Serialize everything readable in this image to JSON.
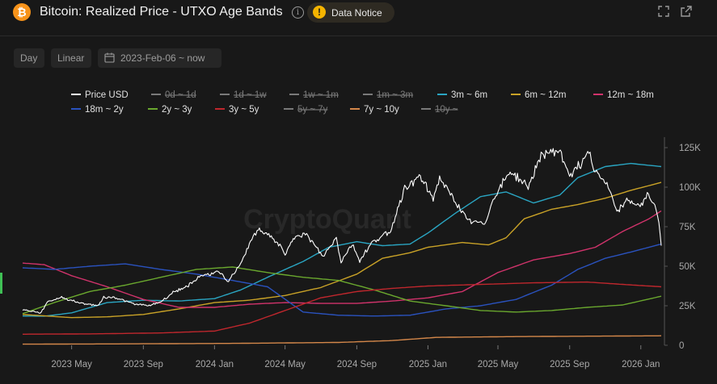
{
  "header": {
    "logo_glyph": "₿",
    "title": "Bitcoin: Realized Price - UTXO Age Bands",
    "info_glyph": "i",
    "notice_glyph": "!",
    "notice_label": "Data Notice",
    "icons": [
      "bitcoin-logo",
      "info-icon",
      "warning-icon",
      "fullscreen-icon",
      "external-link-icon"
    ]
  },
  "controls": {
    "interval": "Day",
    "scale": "Linear",
    "date_range": "2023-Feb-06 ~ now",
    "calendar_icon": "calendar-icon"
  },
  "watermark": "CryptoQuant",
  "chart_data": {
    "type": "line",
    "title": "Bitcoin: Realized Price - UTXO Age Bands",
    "x_range": [
      "2023-02-06",
      "2026-02-05"
    ],
    "x_ticks": [
      {
        "label": "2023 May",
        "date": "2023-05-01"
      },
      {
        "label": "2023 Sep",
        "date": "2023-09-01"
      },
      {
        "label": "2024 Jan",
        "date": "2024-01-01"
      },
      {
        "label": "2024 May",
        "date": "2024-05-01"
      },
      {
        "label": "2024 Sep",
        "date": "2024-09-01"
      },
      {
        "label": "2025 Jan",
        "date": "2025-01-01"
      },
      {
        "label": "2025 May",
        "date": "2025-05-01"
      },
      {
        "label": "2025 Sep",
        "date": "2025-09-01"
      },
      {
        "label": "2026 Jan",
        "date": "2026-01-01"
      }
    ],
    "y_axis": {
      "position": "right",
      "min": 0,
      "max": 125000,
      "ticks": [
        {
          "v": 0,
          "label": "0"
        },
        {
          "v": 25000,
          "label": "25K"
        },
        {
          "v": 50000,
          "label": "50K"
        },
        {
          "v": 75000,
          "label": "75K"
        },
        {
          "v": 100000,
          "label": "100K"
        },
        {
          "v": 125000,
          "label": "125K"
        }
      ]
    },
    "legend": [
      {
        "name": "Price USD",
        "color": "#ffffff",
        "visible": true
      },
      {
        "name": "0d ~ 1d",
        "color": "#888888",
        "visible": false
      },
      {
        "name": "1d ~ 1w",
        "color": "#888888",
        "visible": false
      },
      {
        "name": "1w ~ 1m",
        "color": "#888888",
        "visible": false
      },
      {
        "name": "1m ~ 3m",
        "color": "#888888",
        "visible": false
      },
      {
        "name": "3m ~ 6m",
        "color": "#2aa5c2",
        "visible": true
      },
      {
        "name": "6m ~ 12m",
        "color": "#c9a227",
        "visible": true
      },
      {
        "name": "12m ~ 18m",
        "color": "#d1336b",
        "visible": true
      },
      {
        "name": "18m ~ 2y",
        "color": "#2a52be",
        "visible": true
      },
      {
        "name": "2y ~ 3y",
        "color": "#6aa82e",
        "visible": true
      },
      {
        "name": "3y ~ 5y",
        "color": "#c0272d",
        "visible": true
      },
      {
        "name": "5y ~ 7y",
        "color": "#888888",
        "visible": false
      },
      {
        "name": "7y ~ 10y",
        "color": "#d4874a",
        "visible": true
      },
      {
        "name": "10y ~",
        "color": "#888888",
        "visible": false
      }
    ],
    "series": [
      {
        "name": "Price USD",
        "color": "#ffffff",
        "width": 1.1,
        "noise": 0.02,
        "points": [
          [
            "2023-02-06",
            22500
          ],
          [
            "2023-03-10",
            20500
          ],
          [
            "2023-03-20",
            27500
          ],
          [
            "2023-04-14",
            30300
          ],
          [
            "2023-05-15",
            26800
          ],
          [
            "2023-06-15",
            25100
          ],
          [
            "2023-06-25",
            30500
          ],
          [
            "2023-07-15",
            30200
          ],
          [
            "2023-08-17",
            26000
          ],
          [
            "2023-09-11",
            25100
          ],
          [
            "2023-10-01",
            27500
          ],
          [
            "2023-10-24",
            34000
          ],
          [
            "2023-11-15",
            37000
          ],
          [
            "2023-12-08",
            44000
          ],
          [
            "2024-01-11",
            46500
          ],
          [
            "2024-01-23",
            39500
          ],
          [
            "2024-02-15",
            52000
          ],
          [
            "2024-03-05",
            67000
          ],
          [
            "2024-03-14",
            73000
          ],
          [
            "2024-04-01",
            70000
          ],
          [
            "2024-04-20",
            64000
          ],
          [
            "2024-05-01",
            58000
          ],
          [
            "2024-05-21",
            70000
          ],
          [
            "2024-06-07",
            70000
          ],
          [
            "2024-07-05",
            56000
          ],
          [
            "2024-07-28",
            68000
          ],
          [
            "2024-08-05",
            53000
          ],
          [
            "2024-08-24",
            64000
          ],
          [
            "2024-09-06",
            53500
          ],
          [
            "2024-09-28",
            65500
          ],
          [
            "2024-10-29",
            72000
          ],
          [
            "2024-11-12",
            89000
          ],
          [
            "2024-11-22",
            99000
          ],
          [
            "2024-12-17",
            107000
          ],
          [
            "2025-01-10",
            93000
          ],
          [
            "2025-01-21",
            106000
          ],
          [
            "2025-02-25",
            86000
          ],
          [
            "2025-03-10",
            78500
          ],
          [
            "2025-04-08",
            77000
          ],
          [
            "2025-04-25",
            94000
          ],
          [
            "2025-05-22",
            110000
          ],
          [
            "2025-06-22",
            100000
          ],
          [
            "2025-07-14",
            121000
          ],
          [
            "2025-08-14",
            123000
          ],
          [
            "2025-09-01",
            108000
          ],
          [
            "2025-09-20",
            115000
          ],
          [
            "2025-10-06",
            125000
          ],
          [
            "2025-10-11",
            112000
          ],
          [
            "2025-11-04",
            102000
          ],
          [
            "2025-11-21",
            84000
          ],
          [
            "2025-12-10",
            92000
          ],
          [
            "2025-12-31",
            87500
          ],
          [
            "2026-01-14",
            96000
          ],
          [
            "2026-01-25",
            88000
          ],
          [
            "2026-02-01",
            78000
          ],
          [
            "2026-02-05",
            63000
          ]
        ]
      },
      {
        "name": "3m ~ 6m",
        "color": "#2aa5c2",
        "width": 1.4,
        "noise": 0,
        "points": [
          [
            "2023-02-06",
            18500
          ],
          [
            "2023-03-15",
            18400
          ],
          [
            "2023-05-01",
            20500
          ],
          [
            "2023-07-01",
            27000
          ],
          [
            "2023-09-01",
            28500
          ],
          [
            "2023-11-01",
            28000
          ],
          [
            "2024-01-01",
            29500
          ],
          [
            "2024-02-15",
            35000
          ],
          [
            "2024-04-01",
            43000
          ],
          [
            "2024-06-01",
            53000
          ],
          [
            "2024-07-15",
            62000
          ],
          [
            "2024-09-01",
            65500
          ],
          [
            "2024-10-15",
            63000
          ],
          [
            "2024-12-01",
            64000
          ],
          [
            "2025-01-01",
            71000
          ],
          [
            "2025-02-15",
            83000
          ],
          [
            "2025-04-01",
            94000
          ],
          [
            "2025-05-15",
            97000
          ],
          [
            "2025-07-01",
            90000
          ],
          [
            "2025-08-15",
            95000
          ],
          [
            "2025-09-15",
            106000
          ],
          [
            "2025-11-01",
            113000
          ],
          [
            "2025-12-15",
            115000
          ],
          [
            "2026-02-05",
            113000
          ]
        ]
      },
      {
        "name": "6m ~ 12m",
        "color": "#c9a227",
        "width": 1.4,
        "noise": 0,
        "points": [
          [
            "2023-02-06",
            19500
          ],
          [
            "2023-05-01",
            17500
          ],
          [
            "2023-07-01",
            18000
          ],
          [
            "2023-09-01",
            19500
          ],
          [
            "2023-11-01",
            23000
          ],
          [
            "2024-01-01",
            27000
          ],
          [
            "2024-03-01",
            28500
          ],
          [
            "2024-05-01",
            31500
          ],
          [
            "2024-07-01",
            36500
          ],
          [
            "2024-09-01",
            45000
          ],
          [
            "2024-10-15",
            55000
          ],
          [
            "2024-12-01",
            58500
          ],
          [
            "2025-01-01",
            62000
          ],
          [
            "2025-03-01",
            65000
          ],
          [
            "2025-04-15",
            63500
          ],
          [
            "2025-05-15",
            68000
          ],
          [
            "2025-06-15",
            80000
          ],
          [
            "2025-08-01",
            86000
          ],
          [
            "2025-09-15",
            89000
          ],
          [
            "2025-11-01",
            93000
          ],
          [
            "2025-12-15",
            98000
          ],
          [
            "2026-02-05",
            103000
          ]
        ]
      },
      {
        "name": "12m ~ 18m",
        "color": "#d1336b",
        "width": 1.4,
        "noise": 0,
        "points": [
          [
            "2023-02-06",
            52000
          ],
          [
            "2023-03-15",
            51000
          ],
          [
            "2023-05-01",
            44000
          ],
          [
            "2023-07-01",
            37000
          ],
          [
            "2023-09-01",
            29000
          ],
          [
            "2023-11-01",
            24000
          ],
          [
            "2024-01-01",
            24000
          ],
          [
            "2024-03-01",
            26000
          ],
          [
            "2024-05-01",
            27000
          ],
          [
            "2024-07-01",
            26500
          ],
          [
            "2024-09-01",
            26500
          ],
          [
            "2024-11-01",
            28000
          ],
          [
            "2025-01-01",
            30000
          ],
          [
            "2025-03-01",
            34000
          ],
          [
            "2025-05-01",
            46000
          ],
          [
            "2025-07-01",
            54000
          ],
          [
            "2025-09-01",
            58000
          ],
          [
            "2025-10-15",
            62000
          ],
          [
            "2025-12-01",
            72000
          ],
          [
            "2026-01-15",
            80000
          ],
          [
            "2026-02-05",
            85000
          ]
        ]
      },
      {
        "name": "18m ~ 2y",
        "color": "#2a52be",
        "width": 1.4,
        "noise": 0,
        "points": [
          [
            "2023-02-06",
            49000
          ],
          [
            "2023-04-01",
            48000
          ],
          [
            "2023-06-01",
            50000
          ],
          [
            "2023-08-01",
            51500
          ],
          [
            "2023-10-01",
            48000
          ],
          [
            "2023-12-01",
            45000
          ],
          [
            "2024-02-01",
            41000
          ],
          [
            "2024-04-01",
            37000
          ],
          [
            "2024-06-01",
            21000
          ],
          [
            "2024-08-01",
            19000
          ],
          [
            "2024-10-01",
            18500
          ],
          [
            "2024-12-01",
            19000
          ],
          [
            "2025-02-01",
            23000
          ],
          [
            "2025-04-01",
            25000
          ],
          [
            "2025-06-01",
            29000
          ],
          [
            "2025-08-01",
            38000
          ],
          [
            "2025-09-15",
            48000
          ],
          [
            "2025-11-01",
            55000
          ],
          [
            "2025-12-15",
            59000
          ],
          [
            "2026-02-05",
            64000
          ]
        ]
      },
      {
        "name": "2y ~ 3y",
        "color": "#6aa82e",
        "width": 1.4,
        "noise": 0,
        "points": [
          [
            "2023-02-06",
            20000
          ],
          [
            "2023-04-01",
            27000
          ],
          [
            "2023-06-01",
            34000
          ],
          [
            "2023-08-01",
            38000
          ],
          [
            "2023-10-01",
            43000
          ],
          [
            "2023-12-01",
            48000
          ],
          [
            "2024-02-01",
            49500
          ],
          [
            "2024-04-01",
            46000
          ],
          [
            "2024-06-01",
            43000
          ],
          [
            "2024-08-01",
            41000
          ],
          [
            "2024-10-01",
            35000
          ],
          [
            "2024-12-01",
            28000
          ],
          [
            "2025-02-01",
            25000
          ],
          [
            "2025-04-01",
            22000
          ],
          [
            "2025-06-01",
            21000
          ],
          [
            "2025-08-01",
            22000
          ],
          [
            "2025-10-01",
            24000
          ],
          [
            "2025-12-01",
            25500
          ],
          [
            "2026-02-05",
            31000
          ]
        ]
      },
      {
        "name": "3y ~ 5y",
        "color": "#c0272d",
        "width": 1.4,
        "noise": 0,
        "points": [
          [
            "2023-02-06",
            7000
          ],
          [
            "2023-06-01",
            7200
          ],
          [
            "2023-10-01",
            7800
          ],
          [
            "2024-01-01",
            9000
          ],
          [
            "2024-03-01",
            14000
          ],
          [
            "2024-05-01",
            22000
          ],
          [
            "2024-07-01",
            30000
          ],
          [
            "2024-09-01",
            34000
          ],
          [
            "2024-11-01",
            36000
          ],
          [
            "2025-01-01",
            37500
          ],
          [
            "2025-04-01",
            38500
          ],
          [
            "2025-07-01",
            39500
          ],
          [
            "2025-10-01",
            40000
          ],
          [
            "2025-12-01",
            38500
          ],
          [
            "2026-02-05",
            37000
          ]
        ]
      },
      {
        "name": "7y ~ 10y",
        "color": "#d4874a",
        "width": 1.4,
        "noise": 0,
        "points": [
          [
            "2023-02-06",
            700
          ],
          [
            "2023-08-01",
            900
          ],
          [
            "2024-02-01",
            1200
          ],
          [
            "2024-08-01",
            1800
          ],
          [
            "2024-11-01",
            3000
          ],
          [
            "2025-01-15",
            5000
          ],
          [
            "2025-06-01",
            5500
          ],
          [
            "2026-02-05",
            6000
          ]
        ]
      }
    ]
  }
}
